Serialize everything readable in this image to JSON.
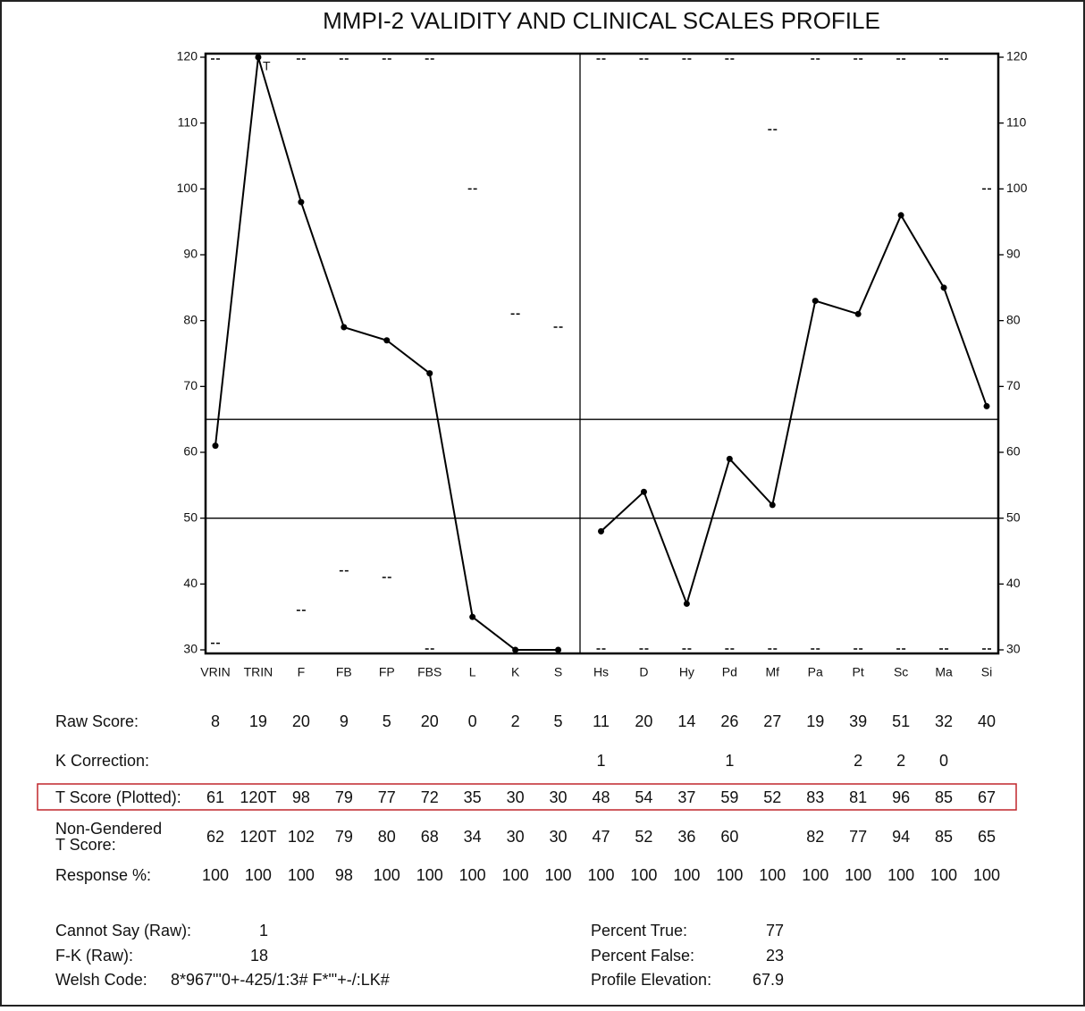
{
  "chart_data": {
    "type": "line",
    "title": "MMPI-2 VALIDITY AND CLINICAL SCALES PROFILE",
    "categories": [
      "VRIN",
      "TRIN",
      "F",
      "FB",
      "FP",
      "FBS",
      "L",
      "K",
      "S",
      "Hs",
      "D",
      "Hy",
      "Pd",
      "Mf",
      "Pa",
      "Pt",
      "Sc",
      "Ma",
      "Si"
    ],
    "series": [
      {
        "style": "line",
        "color": "#000000",
        "values": [
          61,
          120,
          98,
          79,
          77,
          72,
          35,
          30,
          30,
          null,
          null,
          null,
          null,
          null,
          null,
          null,
          null,
          null,
          null
        ]
      },
      {
        "style": "line",
        "color": "#000000",
        "values": [
          null,
          null,
          null,
          null,
          null,
          null,
          null,
          null,
          null,
          48,
          54,
          37,
          59,
          52,
          83,
          81,
          96,
          85,
          67
        ]
      },
      {
        "style": "dash",
        "color": "#000000",
        "values": [
          120,
          null,
          120,
          120,
          120,
          120,
          100,
          81,
          79,
          120,
          120,
          120,
          120,
          109,
          120,
          120,
          120,
          120,
          100
        ]
      },
      {
        "style": "dash",
        "color": "#000000",
        "values": [
          31,
          null,
          36,
          42,
          41,
          30,
          null,
          null,
          null,
          30,
          30,
          30,
          30,
          30,
          30,
          30,
          30,
          30,
          30
        ]
      }
    ],
    "annotations": [
      {
        "text": "T",
        "category": 1,
        "y": 120
      }
    ],
    "reference_lines": [
      65,
      50
    ],
    "ylim": [
      30,
      120
    ],
    "yticks": [
      30,
      40,
      50,
      60,
      70,
      80,
      90,
      100,
      110,
      120
    ]
  },
  "table": {
    "rows": [
      {
        "label": "Raw Score:",
        "cells": [
          8,
          19,
          20,
          9,
          5,
          20,
          0,
          2,
          5,
          11,
          20,
          14,
          26,
          27,
          19,
          39,
          51,
          32,
          40
        ]
      },
      {
        "label": "K Correction:",
        "cells": [
          null,
          null,
          null,
          null,
          null,
          null,
          null,
          null,
          null,
          1,
          null,
          null,
          1,
          null,
          null,
          2,
          2,
          0,
          null
        ]
      },
      {
        "label": "T Score (Plotted):",
        "cells": [
          61,
          "120T",
          98,
          79,
          77,
          72,
          35,
          30,
          30,
          48,
          54,
          37,
          59,
          52,
          83,
          81,
          96,
          85,
          67
        ]
      },
      {
        "label": "Non-Gendered T Score:",
        "cells": [
          62,
          "120T",
          102,
          79,
          80,
          68,
          34,
          30,
          30,
          47,
          52,
          36,
          60,
          null,
          82,
          77,
          94,
          85,
          65
        ]
      },
      {
        "label": "Response %:",
        "cells": [
          100,
          100,
          100,
          98,
          100,
          100,
          100,
          100,
          100,
          100,
          100,
          100,
          100,
          100,
          100,
          100,
          100,
          100,
          100
        ]
      }
    ]
  },
  "footer": {
    "left": [
      {
        "label": "Cannot Say (Raw):",
        "value": "1"
      },
      {
        "label": "F-K (Raw):",
        "value": "18"
      },
      {
        "label": "Welsh Code:",
        "value": "8*967\"'0+-425/1:3# F*\"'+-/:LK#"
      }
    ],
    "right": [
      {
        "label": "Percent True:",
        "value": "77"
      },
      {
        "label": "Percent False:",
        "value": "23"
      },
      {
        "label": "Profile Elevation:",
        "value": "67.9"
      }
    ]
  }
}
